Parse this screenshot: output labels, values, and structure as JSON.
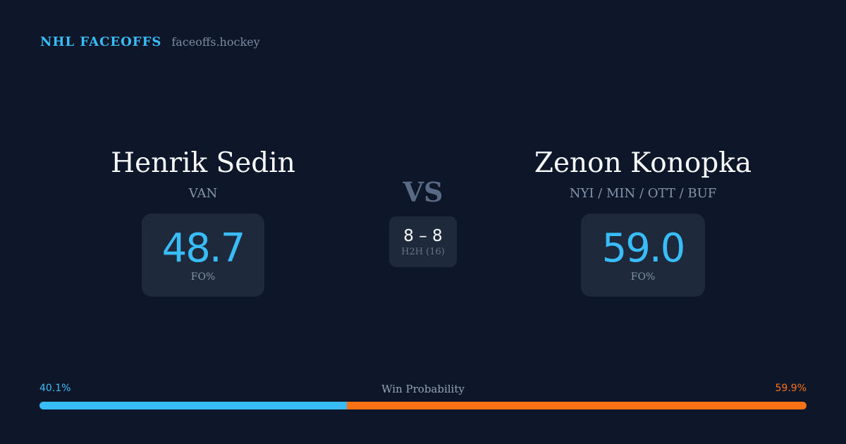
{
  "header": {
    "brand": "NHL FACEOFFS",
    "site": "faceoffs.hockey"
  },
  "player_a": {
    "name": "Henrik Sedin",
    "team": "VAN",
    "fo_pct": "48.7",
    "fo_label": "FO%"
  },
  "player_b": {
    "name": "Zenon Konopka",
    "team": "NYI / MIN / OTT / BUF",
    "fo_pct": "59.0",
    "fo_label": "FO%"
  },
  "versus": {
    "label": "VS",
    "score": "8 – 8",
    "h2h_label": "H2H (16)"
  },
  "win_probability": {
    "title": "Win Probability",
    "a_label": "40.1%",
    "b_label": "59.9%",
    "a_value": 40.1,
    "b_value": 59.9,
    "a_color": "#38bdf8",
    "b_color": "#f97316"
  }
}
